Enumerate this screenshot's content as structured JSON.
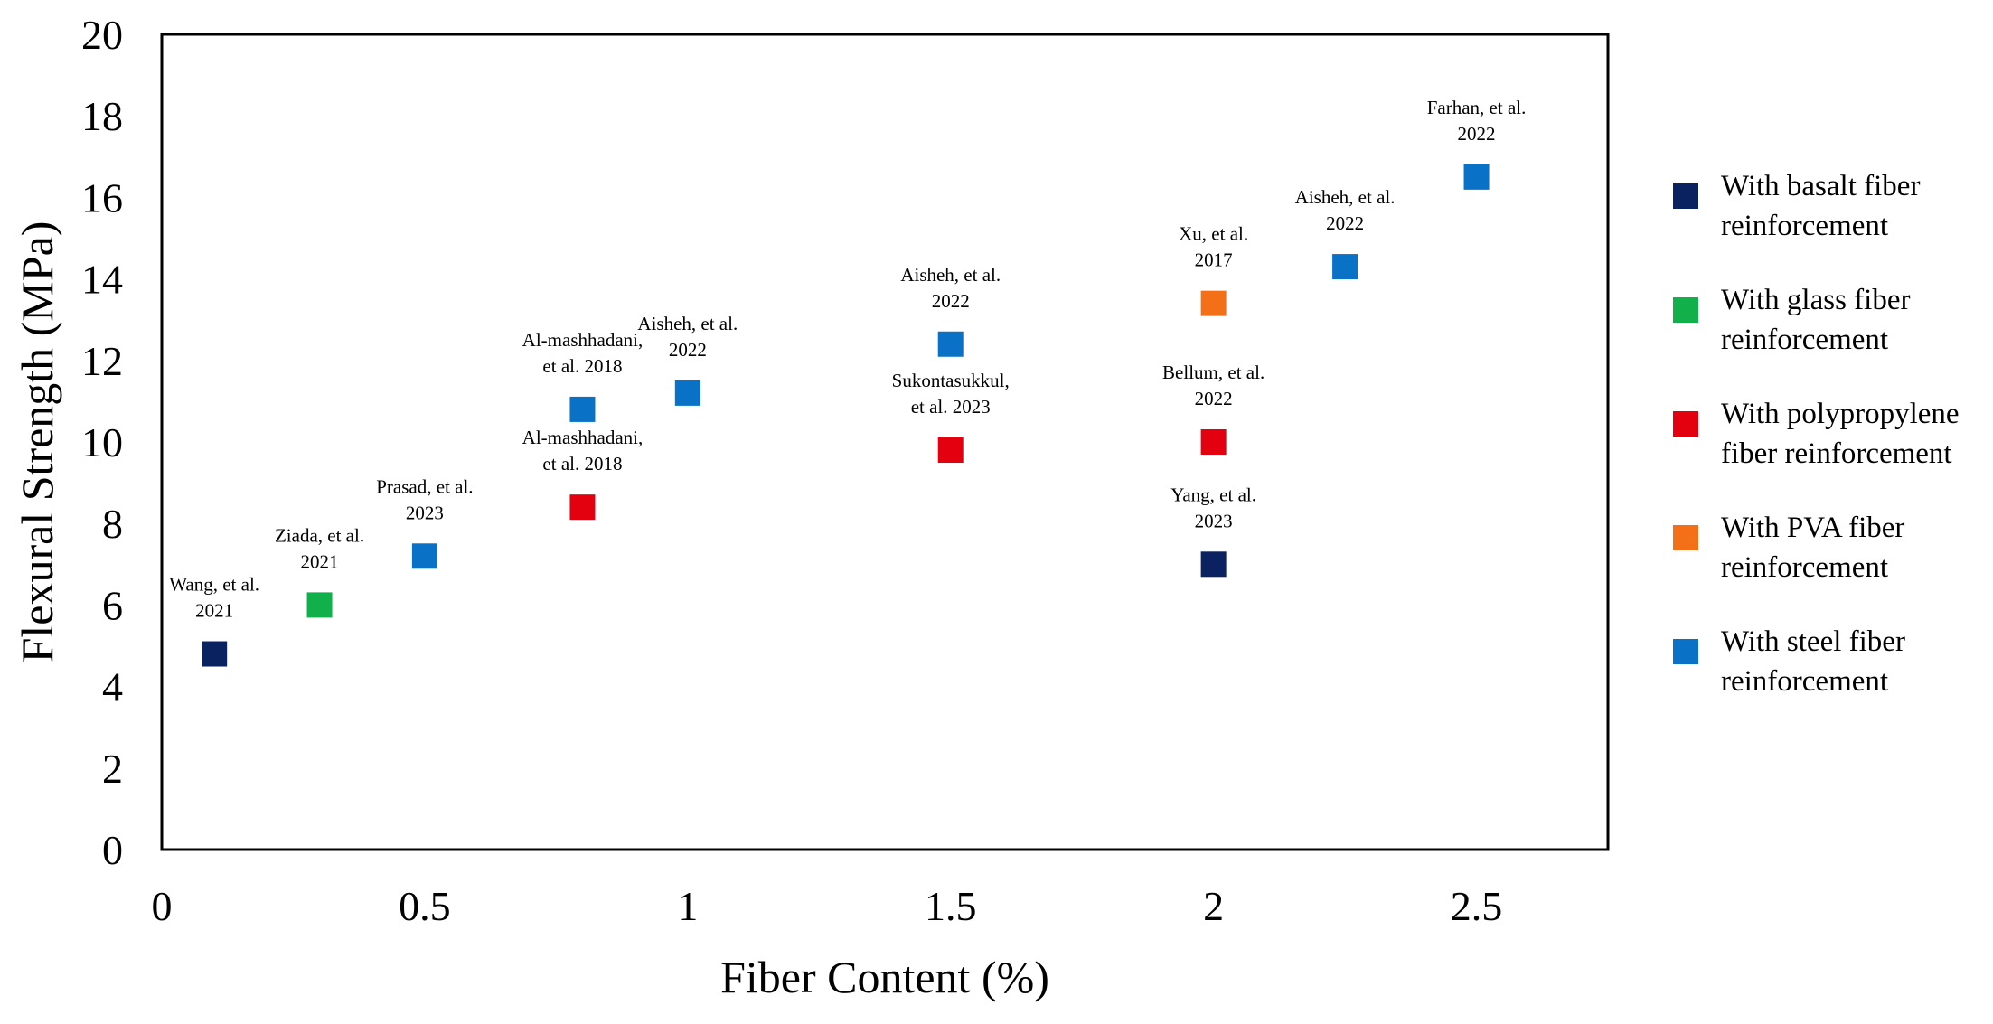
{
  "chart_data": {
    "type": "scatter",
    "xlabel": "Fiber Content (%)",
    "ylabel": "Flexural Strength (MPa)",
    "xlim": [
      0,
      2.75
    ],
    "ylim": [
      0,
      20
    ],
    "xticks": [
      "0",
      "0.5",
      "1",
      "1.5",
      "2",
      "2.5"
    ],
    "yticks": [
      "0",
      "2",
      "4",
      "6",
      "8",
      "10",
      "12",
      "14",
      "16",
      "18",
      "20"
    ],
    "grid": false,
    "legend_position": "right",
    "series": [
      {
        "name": "With basalt fiber reinforcement",
        "legend_lines": [
          "With basalt fiber",
          "reinforcement"
        ],
        "color": "#0b2260",
        "points": [
          {
            "x": 0.1,
            "y": 4.8,
            "label": [
              "Wang, et al.",
              "2021"
            ]
          },
          {
            "x": 2.0,
            "y": 7.0,
            "label": [
              "Yang, et al.",
              "2023"
            ]
          }
        ]
      },
      {
        "name": "With glass fiber reinforcement",
        "legend_lines": [
          "With glass fiber",
          "reinforcement"
        ],
        "color": "#12b04b",
        "points": [
          {
            "x": 0.3,
            "y": 6.0,
            "label": [
              "Ziada, et al.",
              "2021"
            ]
          }
        ]
      },
      {
        "name": "With polypropylene fiber reinforcement",
        "legend_lines": [
          "With polypropylene",
          "fiber reinforcement"
        ],
        "color": "#e3000f",
        "points": [
          {
            "x": 0.8,
            "y": 8.4,
            "label": [
              "Al-mashhadani,",
              "et al. 2018"
            ]
          },
          {
            "x": 1.5,
            "y": 9.8,
            "label": [
              "Sukontasukkul,",
              "et al. 2023"
            ]
          },
          {
            "x": 2.0,
            "y": 10.0,
            "label": [
              "Bellum, et al.",
              "2022"
            ]
          }
        ]
      },
      {
        "name": "With PVA fiber reinforcement",
        "legend_lines": [
          "With PVA fiber",
          "reinforcement"
        ],
        "color": "#f47018",
        "points": [
          {
            "x": 2.0,
            "y": 13.4,
            "label": [
              "Xu, et al.",
              "2017"
            ]
          }
        ]
      },
      {
        "name": "With steel fiber reinforcement",
        "legend_lines": [
          "With steel fiber",
          "reinforcement"
        ],
        "color": "#0a72c6",
        "points": [
          {
            "x": 0.5,
            "y": 7.2,
            "label": [
              "Prasad, et al.",
              "2023"
            ]
          },
          {
            "x": 0.8,
            "y": 10.8,
            "label": [
              "Al-mashhadani,",
              "et al. 2018"
            ]
          },
          {
            "x": 1.0,
            "y": 11.2,
            "label": [
              "Aisheh, et al.",
              "2022"
            ]
          },
          {
            "x": 1.5,
            "y": 12.4,
            "label": [
              "Aisheh, et al.",
              "2022"
            ]
          },
          {
            "x": 2.25,
            "y": 14.3,
            "label": [
              "Aisheh, et al.",
              "2022"
            ]
          },
          {
            "x": 2.5,
            "y": 16.5,
            "label": [
              "Farhan, et al.",
              "2022"
            ]
          }
        ]
      }
    ]
  }
}
